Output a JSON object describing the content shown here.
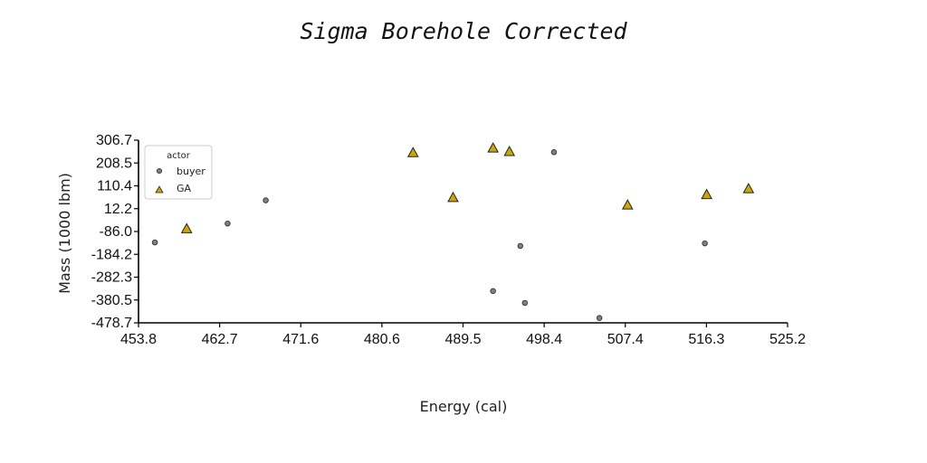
{
  "chart_data": {
    "type": "scatter",
    "title": "Sigma Borehole Corrected",
    "xlabel": "Energy (cal)",
    "ylabel": "Mass (1000 lbm)",
    "xlim": [
      453.8,
      525.2
    ],
    "ylim": [
      -478.7,
      306.7
    ],
    "x_ticks": [
      "453.8",
      "462.7",
      "471.6",
      "480.6",
      "489.5",
      "498.4",
      "507.4",
      "516.3",
      "525.2"
    ],
    "y_ticks": [
      "-478.7",
      "-380.5",
      "-282.3",
      "-184.2",
      "-86.0",
      "12.2",
      "110.4",
      "208.5",
      "306.7"
    ],
    "legend": {
      "title": "actor",
      "position": "top-left"
    },
    "grid": false,
    "series": [
      {
        "name": "buyer",
        "marker": "circle",
        "color": "#808080",
        "points": [
          {
            "x": 455.6,
            "y": -133
          },
          {
            "x": 463.6,
            "y": -52
          },
          {
            "x": 467.8,
            "y": 48
          },
          {
            "x": 492.8,
            "y": -342
          },
          {
            "x": 495.8,
            "y": -148
          },
          {
            "x": 496.3,
            "y": -393
          },
          {
            "x": 499.5,
            "y": 255
          },
          {
            "x": 504.5,
            "y": -458
          },
          {
            "x": 516.1,
            "y": -137
          }
        ]
      },
      {
        "name": "GA",
        "marker": "triangle",
        "color": "#c9a800",
        "points": [
          {
            "x": 459.1,
            "y": -72
          },
          {
            "x": 484.0,
            "y": 255
          },
          {
            "x": 488.4,
            "y": 62
          },
          {
            "x": 492.8,
            "y": 275
          },
          {
            "x": 494.6,
            "y": 260
          },
          {
            "x": 507.6,
            "y": 30
          },
          {
            "x": 516.3,
            "y": 75
          },
          {
            "x": 520.9,
            "y": 100
          }
        ]
      }
    ]
  }
}
